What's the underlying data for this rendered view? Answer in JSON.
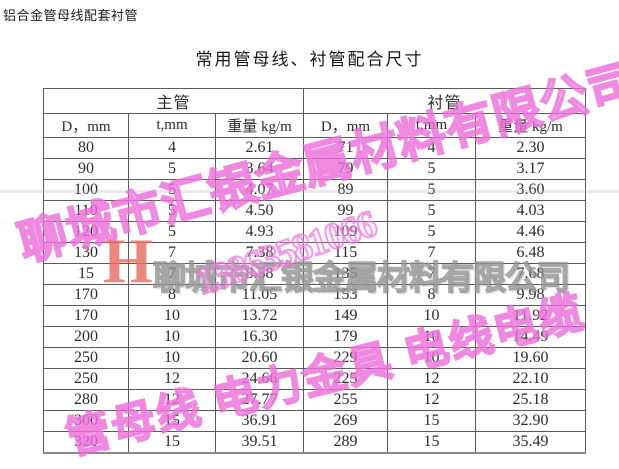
{
  "page": {
    "top_title": "铝合金管母线配套衬管",
    "table_title": "常用管母线、衬管配合尺寸"
  },
  "table": {
    "group_headers": [
      "主管",
      "衬管"
    ],
    "col_headers": [
      "D，mm",
      "t,mm",
      "重量 kg/m",
      "D，mm",
      "t,mm",
      "重量 kg/m"
    ],
    "rows": [
      [
        "80",
        "4",
        "2.61",
        "71",
        "4",
        "2.30"
      ],
      [
        "90",
        "5",
        "3.64",
        "79",
        "5",
        "3.17"
      ],
      [
        "100",
        "5",
        "4.07",
        "89",
        "5",
        "3.60"
      ],
      [
        "110",
        "5",
        "4.50",
        "99",
        "5",
        "4.03"
      ],
      [
        "120",
        "5",
        "4.93",
        "109",
        "5",
        "4.46"
      ],
      [
        "130",
        "7",
        "7.38",
        "115",
        "7",
        "6.48"
      ],
      [
        "15",
        "7",
        "8.58",
        "135",
        "7",
        "7.68"
      ],
      [
        "170",
        "8",
        "11.05",
        "153",
        "8",
        "9.98"
      ],
      [
        "170",
        "10",
        "13.72",
        "149",
        "10",
        "11.92"
      ],
      [
        "200",
        "10",
        "16.30",
        "179",
        "10",
        "14.49"
      ],
      [
        "250",
        "10",
        "20.60",
        "229",
        "10",
        "19.60"
      ],
      [
        "250",
        "12",
        "24.66",
        "225",
        "12",
        "22.10"
      ],
      [
        "280",
        "12",
        "27.77",
        "255",
        "12",
        "25.18"
      ],
      [
        "300",
        "15",
        "36.91",
        "269",
        "15",
        "32.90"
      ],
      [
        "320",
        "15",
        "39.51",
        "289",
        "15",
        "35.49"
      ]
    ]
  },
  "watermark": {
    "company": "聊城市汇银金属材料有限公司",
    "phone": "13863581066",
    "products": "管母线 电力金具 电线电缆",
    "logo_letter": "H",
    "pink_color": "#ec69d8",
    "grey_color": "#8a8a8a",
    "logo_color": "#e76a60"
  }
}
